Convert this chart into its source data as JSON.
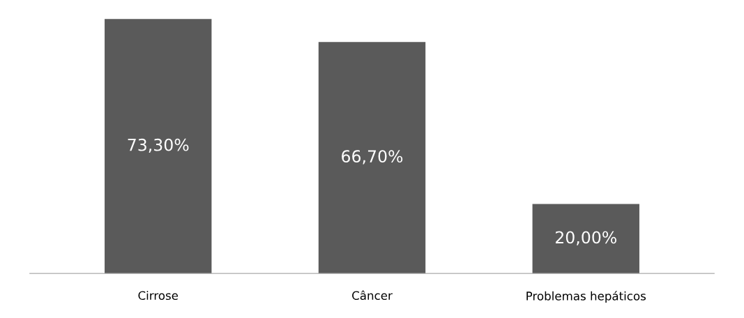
{
  "chart_data": {
    "type": "bar",
    "categories": [
      "Cirrose",
      "Câncer",
      "Problemas hepáticos"
    ],
    "values": [
      73.3,
      66.7,
      20.0
    ],
    "value_labels": [
      "73,30%",
      "66,70%",
      "20,00%"
    ],
    "color": "#5a5a5a",
    "grid": false,
    "legend": false
  }
}
